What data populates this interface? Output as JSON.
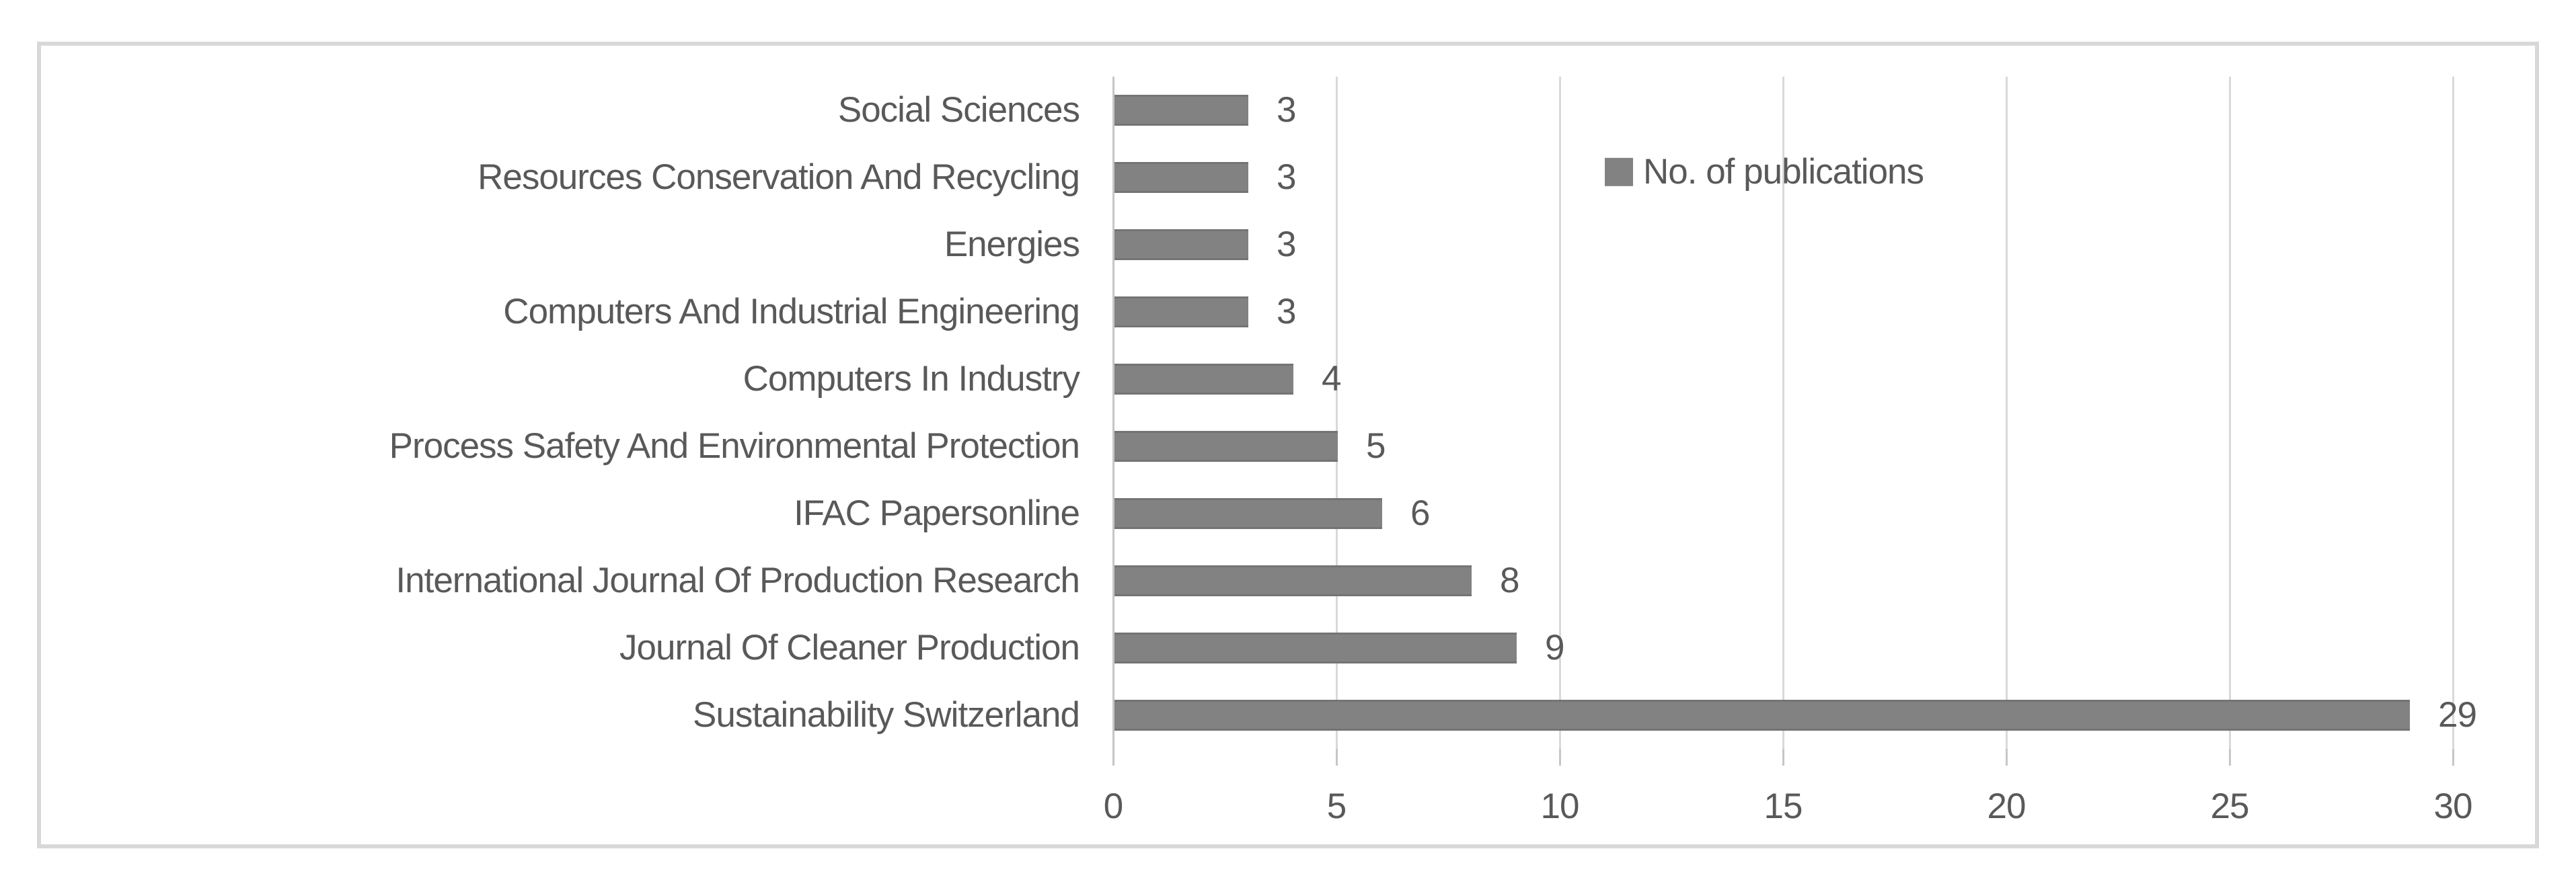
{
  "chart_data": {
    "type": "bar",
    "orientation": "horizontal",
    "title": "",
    "xlabel": "",
    "ylabel": "",
    "legend": "No. of publications",
    "legend_position": "inside-top-right",
    "categories": [
      "Social Sciences",
      "Resources Conservation And Recycling",
      "Energies",
      "Computers And Industrial Engineering",
      "Computers In Industry",
      "Process Safety And Environmental Protection",
      "IFAC Papersonline",
      "International Journal Of Production Research",
      "Journal Of Cleaner Production",
      "Sustainability Switzerland"
    ],
    "values": [
      3,
      3,
      3,
      3,
      4,
      5,
      6,
      8,
      9,
      29
    ],
    "data_labels": [
      "3",
      "3",
      "3",
      "3",
      "4",
      "5",
      "6",
      "8",
      "9",
      "29"
    ],
    "xlim": [
      0,
      30
    ],
    "x_ticks": [
      "0",
      "5",
      "10",
      "15",
      "20",
      "25",
      "30"
    ],
    "grid": true,
    "colors": {
      "bar": "#828282",
      "gridline": "#d9d9d9",
      "axis_line": "#c6c6c6",
      "text": "#595959",
      "frame_border": "#d8d8d8",
      "background": "#ffffff"
    }
  }
}
